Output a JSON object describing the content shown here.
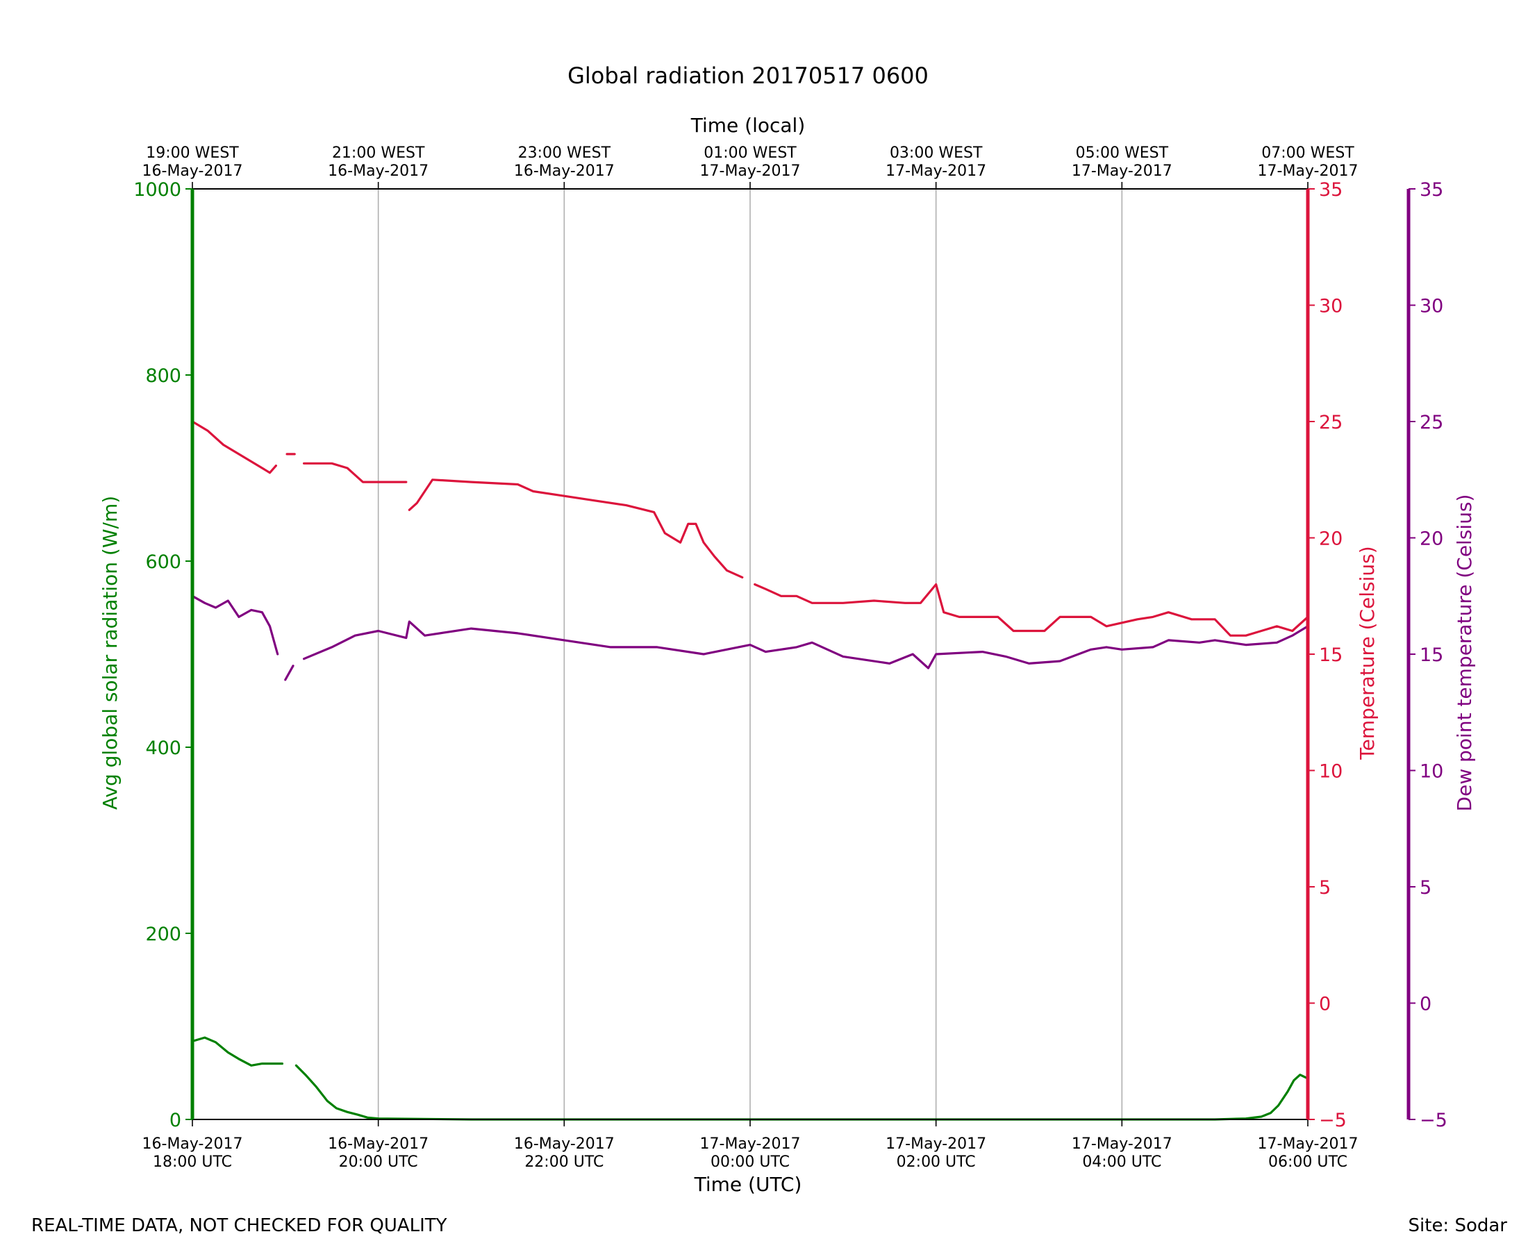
{
  "chart_data": {
    "type": "line",
    "title": "Global radiation 20170517 0600",
    "xlabel": "Time (UTC)",
    "xlabel_top": "Time (local)",
    "x_ticks_bottom": [
      {
        "line1": "16-May-2017",
        "line2": "18:00 UTC"
      },
      {
        "line1": "16-May-2017",
        "line2": "20:00 UTC"
      },
      {
        "line1": "16-May-2017",
        "line2": "22:00 UTC"
      },
      {
        "line1": "17-May-2017",
        "line2": "00:00 UTC"
      },
      {
        "line1": "17-May-2017",
        "line2": "02:00 UTC"
      },
      {
        "line1": "17-May-2017",
        "line2": "04:00 UTC"
      },
      {
        "line1": "17-May-2017",
        "line2": "06:00 UTC"
      }
    ],
    "x_ticks_top": [
      {
        "line1": "19:00 WEST",
        "line2": "16-May-2017"
      },
      {
        "line1": "21:00 WEST",
        "line2": "16-May-2017"
      },
      {
        "line1": "23:00 WEST",
        "line2": "16-May-2017"
      },
      {
        "line1": "01:00 WEST",
        "line2": "17-May-2017"
      },
      {
        "line1": "03:00 WEST",
        "line2": "17-May-2017"
      },
      {
        "line1": "05:00 WEST",
        "line2": "17-May-2017"
      },
      {
        "line1": "07:00 WEST",
        "line2": "17-May-2017"
      }
    ],
    "xlim": [
      "2017-05-16 18:00",
      "2017-05-17 06:00"
    ],
    "grid": "vertical",
    "axes": {
      "radiation": {
        "label": "Avg global solar radiation (W/m)",
        "ylim": [
          0,
          1000
        ],
        "ticks": [
          "0",
          "200",
          "400",
          "600",
          "800",
          "1000"
        ],
        "color": "#008000",
        "side": "left"
      },
      "temperature": {
        "label": "Temperature (Celsius)",
        "ylim": [
          -5,
          35
        ],
        "ticks": [
          "−5",
          "0",
          "5",
          "10",
          "15",
          "20",
          "25",
          "30",
          "35"
        ],
        "color": "#dc143c",
        "side": "right"
      },
      "dewpoint": {
        "label": "Dew point temperature (Celsius)",
        "ylim": [
          -5,
          35
        ],
        "ticks": [
          "−5",
          "0",
          "5",
          "10",
          "15",
          "20",
          "25",
          "30",
          "35"
        ],
        "color": "#800080",
        "side": "right-outer"
      }
    },
    "series": [
      {
        "axis": "radiation",
        "color": "#008000",
        "points": [
          [
            "2017-05-16 18:00",
            84
          ],
          [
            "2017-05-16 18:08",
            88
          ],
          [
            "2017-05-16 18:15",
            83
          ],
          [
            "2017-05-16 18:23",
            72
          ],
          [
            "2017-05-16 18:30",
            65
          ],
          [
            "2017-05-16 18:38",
            58
          ],
          [
            "2017-05-16 18:45",
            60
          ],
          [
            "2017-05-16 18:53",
            60
          ],
          [
            "2017-05-16 18:58",
            60
          ],
          null,
          [
            "2017-05-16 19:07",
            58
          ],
          [
            "2017-05-16 19:13",
            48
          ],
          [
            "2017-05-16 19:20",
            35
          ],
          [
            "2017-05-16 19:27",
            20
          ],
          [
            "2017-05-16 19:33",
            12
          ],
          [
            "2017-05-16 19:40",
            8
          ],
          [
            "2017-05-16 19:47",
            5
          ],
          [
            "2017-05-16 19:53",
            2
          ],
          [
            "2017-05-16 20:00",
            1
          ],
          [
            "2017-05-16 21:00",
            0
          ],
          [
            "2017-05-16 22:00",
            0
          ],
          [
            "2017-05-17 00:00",
            0
          ],
          [
            "2017-05-17 02:00",
            0
          ],
          [
            "2017-05-17 04:00",
            0
          ],
          [
            "2017-05-17 05:00",
            0
          ],
          [
            "2017-05-17 05:20",
            1
          ],
          [
            "2017-05-17 05:30",
            3
          ],
          [
            "2017-05-17 05:36",
            7
          ],
          [
            "2017-05-17 05:41",
            15
          ],
          [
            "2017-05-17 05:47",
            30
          ],
          [
            "2017-05-17 05:51",
            42
          ],
          [
            "2017-05-17 05:55",
            48
          ],
          [
            "2017-05-17 06:00",
            44
          ]
        ]
      },
      {
        "axis": "temperature",
        "color": "#dc143c",
        "points": [
          [
            "2017-05-16 18:00",
            25.0
          ],
          [
            "2017-05-16 18:10",
            24.6
          ],
          [
            "2017-05-16 18:20",
            24.0
          ],
          [
            "2017-05-16 18:30",
            23.6
          ],
          [
            "2017-05-16 18:40",
            23.2
          ],
          [
            "2017-05-16 18:50",
            22.8
          ],
          [
            "2017-05-16 18:54",
            23.1
          ],
          null,
          [
            "2017-05-16 19:01",
            23.6
          ],
          [
            "2017-05-16 19:06",
            23.6
          ],
          null,
          [
            "2017-05-16 19:12",
            23.2
          ],
          [
            "2017-05-16 19:30",
            23.2
          ],
          [
            "2017-05-16 19:40",
            23.0
          ],
          [
            "2017-05-16 19:50",
            22.4
          ],
          [
            "2017-05-16 20:00",
            22.4
          ],
          [
            "2017-05-16 20:10",
            22.4
          ],
          [
            "2017-05-16 20:18",
            22.4
          ],
          null,
          [
            "2017-05-16 20:20",
            21.2
          ],
          [
            "2017-05-16 20:25",
            21.5
          ],
          [
            "2017-05-16 20:35",
            22.5
          ],
          [
            "2017-05-16 21:00",
            22.4
          ],
          [
            "2017-05-16 21:30",
            22.3
          ],
          [
            "2017-05-16 21:40",
            22.0
          ],
          [
            "2017-05-16 22:00",
            21.8
          ],
          [
            "2017-05-16 22:20",
            21.6
          ],
          [
            "2017-05-16 22:40",
            21.4
          ],
          [
            "2017-05-16 22:58",
            21.1
          ],
          [
            "2017-05-16 23:05",
            20.2
          ],
          [
            "2017-05-16 23:15",
            19.8
          ],
          [
            "2017-05-16 23:20",
            20.6
          ],
          [
            "2017-05-16 23:25",
            20.6
          ],
          [
            "2017-05-16 23:30",
            19.8
          ],
          [
            "2017-05-16 23:37",
            19.2
          ],
          [
            "2017-05-16 23:45",
            18.6
          ],
          [
            "2017-05-16 23:55",
            18.3
          ],
          null,
          [
            "2017-05-17 00:03",
            18.0
          ],
          [
            "2017-05-17 00:10",
            17.8
          ],
          [
            "2017-05-17 00:20",
            17.5
          ],
          [
            "2017-05-17 00:30",
            17.5
          ],
          [
            "2017-05-17 00:40",
            17.2
          ],
          [
            "2017-05-17 01:00",
            17.2
          ],
          [
            "2017-05-17 01:20",
            17.3
          ],
          [
            "2017-05-17 01:40",
            17.2
          ],
          [
            "2017-05-17 01:50",
            17.2
          ],
          [
            "2017-05-17 02:00",
            18.0
          ],
          [
            "2017-05-17 02:05",
            16.8
          ],
          [
            "2017-05-17 02:15",
            16.6
          ],
          [
            "2017-05-17 02:40",
            16.6
          ],
          [
            "2017-05-17 02:50",
            16.0
          ],
          [
            "2017-05-17 03:10",
            16.0
          ],
          [
            "2017-05-17 03:20",
            16.6
          ],
          [
            "2017-05-17 03:40",
            16.6
          ],
          [
            "2017-05-17 03:50",
            16.2
          ],
          [
            "2017-05-17 04:10",
            16.5
          ],
          [
            "2017-05-17 04:20",
            16.6
          ],
          [
            "2017-05-17 04:30",
            16.8
          ],
          [
            "2017-05-17 04:45",
            16.5
          ],
          [
            "2017-05-17 05:00",
            16.5
          ],
          [
            "2017-05-17 05:10",
            15.8
          ],
          [
            "2017-05-17 05:20",
            15.8
          ],
          [
            "2017-05-17 05:30",
            16.0
          ],
          [
            "2017-05-17 05:40",
            16.2
          ],
          [
            "2017-05-17 05:50",
            16.0
          ],
          [
            "2017-05-17 06:00",
            16.6
          ]
        ]
      },
      {
        "axis": "dewpoint",
        "color": "#800080",
        "points": [
          [
            "2017-05-16 18:00",
            17.5
          ],
          [
            "2017-05-16 18:08",
            17.2
          ],
          [
            "2017-05-16 18:15",
            17.0
          ],
          [
            "2017-05-16 18:23",
            17.3
          ],
          [
            "2017-05-16 18:30",
            16.6
          ],
          [
            "2017-05-16 18:38",
            16.9
          ],
          [
            "2017-05-16 18:45",
            16.8
          ],
          [
            "2017-05-16 18:50",
            16.2
          ],
          [
            "2017-05-16 18:55",
            15.0
          ],
          null,
          [
            "2017-05-16 19:00",
            13.9
          ],
          [
            "2017-05-16 19:05",
            14.5
          ],
          null,
          [
            "2017-05-16 19:12",
            14.8
          ],
          [
            "2017-05-16 19:30",
            15.3
          ],
          [
            "2017-05-16 19:45",
            15.8
          ],
          [
            "2017-05-16 20:00",
            16.0
          ],
          [
            "2017-05-16 20:18",
            15.7
          ],
          [
            "2017-05-16 20:20",
            16.4
          ],
          [
            "2017-05-16 20:30",
            15.8
          ],
          [
            "2017-05-16 21:00",
            16.1
          ],
          [
            "2017-05-16 21:30",
            15.9
          ],
          [
            "2017-05-16 22:00",
            15.6
          ],
          [
            "2017-05-16 22:30",
            15.3
          ],
          [
            "2017-05-16 23:00",
            15.3
          ],
          [
            "2017-05-16 23:30",
            15.0
          ],
          [
            "2017-05-17 00:00",
            15.4
          ],
          [
            "2017-05-17 00:10",
            15.1
          ],
          [
            "2017-05-17 00:30",
            15.3
          ],
          [
            "2017-05-17 00:40",
            15.5
          ],
          [
            "2017-05-17 01:00",
            14.9
          ],
          [
            "2017-05-17 01:30",
            14.6
          ],
          [
            "2017-05-17 01:45",
            15.0
          ],
          [
            "2017-05-17 01:55",
            14.4
          ],
          [
            "2017-05-17 02:00",
            15.0
          ],
          [
            "2017-05-17 02:30",
            15.1
          ],
          [
            "2017-05-17 02:45",
            14.9
          ],
          [
            "2017-05-17 03:00",
            14.6
          ],
          [
            "2017-05-17 03:20",
            14.7
          ],
          [
            "2017-05-17 03:40",
            15.2
          ],
          [
            "2017-05-17 03:50",
            15.3
          ],
          [
            "2017-05-17 04:00",
            15.2
          ],
          [
            "2017-05-17 04:20",
            15.3
          ],
          [
            "2017-05-17 04:30",
            15.6
          ],
          [
            "2017-05-17 04:50",
            15.5
          ],
          [
            "2017-05-17 05:00",
            15.6
          ],
          [
            "2017-05-17 05:20",
            15.4
          ],
          [
            "2017-05-17 05:40",
            15.5
          ],
          [
            "2017-05-17 05:50",
            15.8
          ],
          [
            "2017-05-17 06:00",
            16.2
          ]
        ]
      }
    ]
  },
  "footer": {
    "left": "REAL-TIME DATA, NOT CHECKED FOR QUALITY",
    "right": "Site: Sodar"
  }
}
